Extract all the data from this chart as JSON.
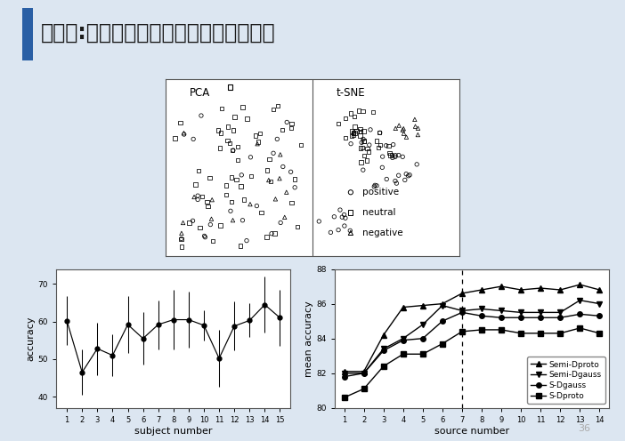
{
  "title": "研究一:基于风格迁移映射的多源迁移学习",
  "title_color": "#222222",
  "slide_bg": "#dce6f1",
  "page_number": "36",
  "left_chart": {
    "subjects": [
      1,
      2,
      3,
      4,
      5,
      6,
      7,
      8,
      9,
      10,
      11,
      12,
      13,
      14,
      15
    ],
    "mean": [
      60.2,
      46.5,
      52.8,
      51.0,
      59.2,
      55.5,
      59.2,
      60.5,
      60.5,
      59.0,
      50.2,
      58.8,
      60.3,
      64.5,
      61.0
    ],
    "yerr_upper": [
      6.5,
      6.0,
      7.0,
      5.5,
      7.5,
      7.0,
      6.5,
      8.0,
      7.5,
      4.0,
      7.5,
      6.5,
      4.5,
      7.5,
      7.5
    ],
    "yerr_lower": [
      6.5,
      6.0,
      7.0,
      5.5,
      7.5,
      7.0,
      6.5,
      8.0,
      7.5,
      4.0,
      7.5,
      6.5,
      4.5,
      7.5,
      7.5
    ],
    "xlabel": "subject number",
    "ylabel": "accuracy",
    "ylim": [
      37,
      74
    ],
    "yticks": [
      40,
      50,
      60,
      70
    ]
  },
  "right_chart": {
    "sources": [
      1,
      2,
      3,
      4,
      5,
      6,
      7,
      8,
      9,
      10,
      11,
      12,
      13,
      14
    ],
    "Semi_Dproto": [
      82.1,
      82.1,
      84.2,
      85.8,
      85.9,
      86.0,
      86.6,
      86.8,
      87.0,
      86.8,
      86.9,
      86.8,
      87.1,
      86.8
    ],
    "Semi_Dgauss": [
      82.0,
      82.0,
      83.4,
      84.0,
      84.8,
      85.9,
      85.6,
      85.7,
      85.6,
      85.5,
      85.5,
      85.5,
      86.2,
      86.0
    ],
    "S_Dgauss": [
      81.8,
      82.0,
      83.3,
      83.9,
      84.0,
      85.0,
      85.5,
      85.3,
      85.2,
      85.2,
      85.2,
      85.2,
      85.4,
      85.3
    ],
    "S_Dproto": [
      80.6,
      81.1,
      82.4,
      83.1,
      83.1,
      83.7,
      84.4,
      84.5,
      84.5,
      84.3,
      84.3,
      84.3,
      84.6,
      84.3
    ],
    "xlabel": "source number",
    "ylabel": "mean accuracy",
    "ylim": [
      80,
      88
    ],
    "yticks": [
      80,
      82,
      84,
      86,
      88
    ],
    "vline_x": 7
  }
}
